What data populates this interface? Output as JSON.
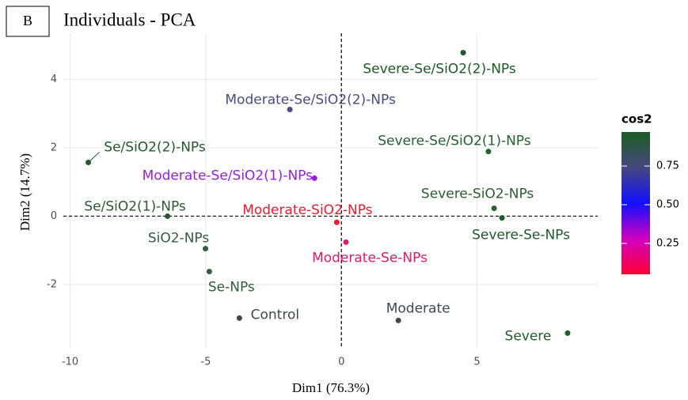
{
  "panel_label": "B",
  "chart_data": {
    "type": "scatter",
    "title": "Individuals - PCA",
    "x_label": "Dim1 (76.3%)",
    "y_label": "Dim2 (14.7%)",
    "xlim": [
      -10.25,
      9.45
    ],
    "ylim": [
      -3.85,
      5.35
    ],
    "xticks": [
      -10,
      -5,
      0,
      5
    ],
    "yticks": [
      -2,
      0,
      2,
      4
    ],
    "grid": true,
    "points": [
      {
        "label": "Severe-Se/SiO2(2)-NPs",
        "x": 4.49,
        "y": 4.78,
        "color": "#1d5a28"
      },
      {
        "label": "Moderate-Se/SiO2(2)-NPs",
        "x": -1.9,
        "y": 3.12,
        "color": "#4b4a86"
      },
      {
        "label": "Severe-Se/SiO2(1)-NPs",
        "x": 5.42,
        "y": 1.89,
        "color": "#24622f"
      },
      {
        "label": "Se/SiO2(2)-NPs",
        "x": -9.33,
        "y": 1.57,
        "color": "#215a2c"
      },
      {
        "label": "Moderate-Se/SiO2(1)-NPs",
        "x": -0.99,
        "y": 1.11,
        "color": "#9b1ce6"
      },
      {
        "label": "Severe-SiO2-NPs",
        "x": 5.63,
        "y": 0.23,
        "color": "#2a5f2e"
      },
      {
        "label": "Severe-Se-NPs",
        "x": 5.92,
        "y": -0.05,
        "color": "#1f5a2b"
      },
      {
        "label": "Se/SiO2(1)-NPs",
        "x": -6.41,
        "y": 0.0,
        "color": "#2a5a2e"
      },
      {
        "label": "Moderate-SiO2-NPs",
        "x": -0.17,
        "y": -0.18,
        "color": "#f0192e"
      },
      {
        "label": "Moderate-Se-NPs",
        "x": 0.17,
        "y": -0.76,
        "color": "#e3186c"
      },
      {
        "label": "SiO2-NPs",
        "x": -5.01,
        "y": -0.95,
        "color": "#2f5e3e"
      },
      {
        "label": "Se-NPs",
        "x": -4.87,
        "y": -1.62,
        "color": "#2f5e3e"
      },
      {
        "label": "Control",
        "x": -3.76,
        "y": -2.98,
        "color": "#3a4a4a"
      },
      {
        "label": "Moderate",
        "x": 2.1,
        "y": -3.05,
        "color": "#3f4a4a"
      },
      {
        "label": "Severe",
        "x": 8.34,
        "y": -3.42,
        "color": "#1f5e2a"
      }
    ],
    "colorbar": {
      "title": "cos2",
      "lim": [
        0.05,
        0.97
      ],
      "ticks": [
        0.25,
        {
          "value": 0.5,
          "label": "0.50"
        },
        0.75
      ],
      "colors": [
        "#ff0033",
        "#d000c0",
        "#1010ff",
        "#464680",
        "#1b5e20"
      ]
    }
  }
}
